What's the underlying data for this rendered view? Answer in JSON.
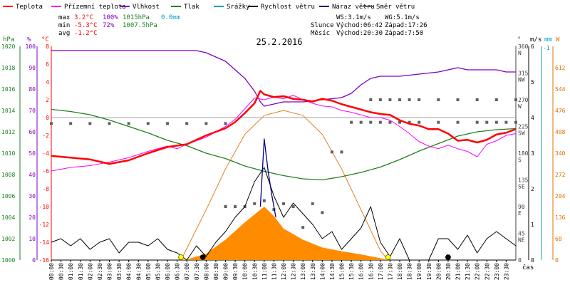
{
  "chart_data": {
    "type": "line",
    "title": "25.2.2016",
    "legend": [
      {
        "label": "Teplota",
        "color": "#ff0000"
      },
      {
        "label": "Přízemní teplota",
        "color": "#ff00ff"
      },
      {
        "label": "Vlhkost",
        "color": "#8000c0"
      },
      {
        "label": "Tlak",
        "color": "#208020"
      },
      {
        "label": "Srážky",
        "color": "#00a0c0"
      },
      {
        "label": "Rychlost větru",
        "color": "#000000"
      },
      {
        "label": "Náraz větru",
        "color": "#000080"
      },
      {
        "label": "Směr větru",
        "color": "#606060"
      }
    ],
    "stats": {
      "max_label": "max",
      "max_temp": "3.2°C",
      "max_hum": "100%",
      "max_press": "1015hPa",
      "max_rain": "0.0mm",
      "min_label": "min",
      "min_temp": "-5.3°C",
      "min_hum": "72%",
      "min_press": "1007.5hPa",
      "avg_label": "avg",
      "avg_temp": "-1.2°C",
      "ws": "WS:3.1m/s",
      "wg": "WG:5.1m/s",
      "sun_label": "Slunce",
      "sunrise": "Východ:06:42",
      "sunset": "Západ:17:26",
      "moon_label": "Měsíc",
      "moonrise": "Východ:20:30",
      "moonset": "Západ:7:50"
    },
    "axis_units": {
      "hpa": "hPa",
      "pct": "%",
      "temp": "°C",
      "deg": "°",
      "ms": "m/s",
      "mm": "mm",
      "w": "W",
      "time": "čas"
    },
    "temp_axis": {
      "range": [
        -16,
        8
      ],
      "ticks": [
        8,
        6,
        4,
        2,
        0,
        -2,
        -4,
        -6,
        -8,
        -10,
        -12,
        -14,
        -16
      ]
    },
    "hum_axis": {
      "range": [
        0,
        100
      ],
      "ticks": [
        100,
        90,
        80,
        70,
        60,
        50,
        40,
        30,
        20,
        10,
        0
      ]
    },
    "press_axis": {
      "range": [
        1000,
        1020
      ],
      "ticks": [
        1020,
        1018,
        1016,
        1014,
        1012,
        1010,
        1008,
        1006,
        1004,
        1002,
        1000
      ]
    },
    "dir_axis": {
      "range": [
        0,
        360
      ],
      "ticks": [
        {
          "v": 360,
          "d": "N"
        },
        {
          "v": 315,
          "d": "NW"
        },
        {
          "v": 270,
          "d": "W"
        },
        {
          "v": 225,
          "d": "SW"
        },
        {
          "v": 180,
          "d": "S"
        },
        {
          "v": 135,
          "d": "SE"
        },
        {
          "v": 90,
          "d": "E"
        },
        {
          "v": 45,
          "d": "NE"
        },
        {
          "v": 0,
          "d": ""
        }
      ]
    },
    "wind_axis": {
      "range": [
        0,
        6
      ],
      "ticks": [
        6,
        5,
        4,
        3,
        2,
        1,
        0
      ]
    },
    "rain_axis_top": "-1",
    "solar_axis": {
      "range": [
        0,
        680
      ],
      "ticks": [
        612,
        544,
        476,
        408,
        340,
        272,
        204,
        136,
        68,
        0
      ]
    },
    "time_ticks": [
      "00:00",
      "00:30",
      "01:00",
      "01:30",
      "02:00",
      "02:30",
      "03:00",
      "03:30",
      "04:00",
      "04:30",
      "05:00",
      "05:30",
      "06:00",
      "06:30",
      "07:00",
      "07:30",
      "08:00",
      "08:30",
      "09:00",
      "09:30",
      "10:00",
      "10:30",
      "11:00",
      "11:30",
      "12:00",
      "12:30",
      "13:00",
      "13:30",
      "14:00",
      "14:30",
      "15:00",
      "15:30",
      "16:00",
      "16:30",
      "17:00",
      "17:30",
      "18:00",
      "18:30",
      "19:00",
      "19:30",
      "20:00",
      "20:30",
      "21:00",
      "21:30",
      "22:00",
      "22:30",
      "23:00",
      "23:30"
    ],
    "x_hours_range": [
      0,
      24
    ],
    "series": {
      "temperature": {
        "x": [
          0,
          1,
          2,
          3,
          4,
          5,
          6,
          7,
          8,
          9,
          9.5,
          10,
          10.5,
          10.8,
          11,
          11.5,
          12,
          12.5,
          13,
          13.5,
          14,
          14.5,
          15,
          15.5,
          16,
          16.5,
          17,
          17.5,
          18,
          18.5,
          19,
          19.5,
          20,
          20.5,
          21,
          21.5,
          22,
          22.5,
          23,
          23.5,
          24
        ],
        "y": [
          -4.3,
          -4.5,
          -4.7,
          -5.2,
          -4.8,
          -4.0,
          -3.3,
          -3.0,
          -2.0,
          -1.2,
          -0.5,
          0.5,
          1.6,
          3.0,
          2.6,
          2.3,
          2.4,
          2.1,
          2.0,
          1.8,
          2.1,
          1.9,
          1.5,
          1.2,
          0.9,
          0.6,
          0.4,
          0.3,
          -0.3,
          -0.7,
          -0.9,
          -1.3,
          -1.3,
          -1.8,
          -2.6,
          -2.5,
          -2.8,
          -2.5,
          -1.9,
          -1.7,
          -1.3
        ]
      },
      "ground_temp": {
        "x": [
          0,
          1,
          2,
          3,
          4,
          5,
          6,
          6.5,
          7,
          8,
          9,
          9.5,
          10,
          10.5,
          11,
          11.5,
          12,
          12.5,
          13,
          13.5,
          14,
          14.5,
          15,
          15.5,
          16,
          16.5,
          17,
          17.5,
          18,
          18.5,
          19,
          19.5,
          20,
          20.5,
          21,
          21.5,
          22,
          22.5,
          23,
          23.5,
          24
        ],
        "y": [
          -6,
          -5.6,
          -5.4,
          -5,
          -4.5,
          -3.8,
          -3.2,
          -3.5,
          -3,
          -2.2,
          -1,
          -0.2,
          1,
          2.2,
          2,
          2.3,
          2.1,
          2.5,
          2,
          1.6,
          1.3,
          1.2,
          0.8,
          0.6,
          0.3,
          0,
          0,
          -0.3,
          -1,
          -1.8,
          -2.7,
          -3.2,
          -3.5,
          -3.1,
          -3.5,
          -3.8,
          -4.4,
          -3,
          -2.6,
          -2,
          -1.8
        ]
      },
      "humidity": {
        "x": [
          0,
          2,
          4,
          6,
          7.5,
          8,
          8.5,
          9,
          9.5,
          10,
          10.5,
          10.8,
          11,
          11.5,
          12,
          13,
          14,
          15,
          15.5,
          16,
          16.5,
          17,
          18,
          19,
          20,
          21,
          21.5,
          22,
          22.5,
          23,
          23.5,
          24
        ],
        "y": [
          98,
          98,
          98,
          98,
          98,
          97,
          95,
          93,
          89,
          85,
          79,
          74,
          72,
          73,
          74,
          74,
          75,
          76,
          78,
          82,
          85,
          86,
          86,
          87,
          88,
          90,
          89,
          89,
          89,
          89,
          88,
          88
        ]
      },
      "pressure": {
        "x": [
          0,
          1,
          2,
          3,
          4,
          5,
          6,
          7,
          8,
          9,
          10,
          11,
          12,
          13,
          14,
          15,
          16,
          17,
          18,
          19,
          20,
          21,
          22,
          23,
          24
        ],
        "y": [
          1014.1,
          1013.9,
          1013.6,
          1013.1,
          1012.5,
          1011.9,
          1011.2,
          1010.7,
          1010.0,
          1009.5,
          1008.8,
          1008.3,
          1007.9,
          1007.6,
          1007.5,
          1007.8,
          1008.2,
          1008.7,
          1009.4,
          1010.2,
          1010.9,
          1011.6,
          1012.0,
          1012.2,
          1012.3
        ]
      },
      "wind_speed": {
        "x": [
          0,
          0.5,
          1,
          1.5,
          2,
          2.5,
          3,
          3.5,
          4,
          4.5,
          5,
          5.5,
          6,
          6.5,
          7,
          7.5,
          8,
          8.5,
          9,
          9.5,
          10,
          10.5,
          11,
          11.5,
          12,
          12.5,
          13,
          13.5,
          14,
          14.5,
          15,
          15.5,
          16,
          16.5,
          17,
          17.5,
          18,
          18.5,
          19,
          19.5,
          20,
          20.5,
          21,
          21.5,
          22,
          22.5,
          23,
          23.5,
          24
        ],
        "y": [
          0.5,
          0.6,
          0.4,
          0.6,
          0.3,
          0.5,
          0.6,
          0.2,
          0.5,
          0.5,
          0.4,
          0.6,
          0.3,
          0.2,
          0,
          0.4,
          0.1,
          0.5,
          0.8,
          1.2,
          1.5,
          2.2,
          2.6,
          1.8,
          1.2,
          1.6,
          1.3,
          1.0,
          0.6,
          0.8,
          0.3,
          0.6,
          0.9,
          1.5,
          0.5,
          0.1,
          0.6,
          0,
          0,
          0,
          0.6,
          0.6,
          0.3,
          0.7,
          0.2,
          0.6,
          0.8,
          0.6,
          0.4
        ]
      },
      "wind_gust": {
        "x": [
          10.8,
          11,
          11.2,
          11.4,
          11.6
        ],
        "y": [
          1.5,
          3.4,
          2.5,
          1.8,
          1.2
        ]
      },
      "solar": {
        "x": [
          6.7,
          7,
          8,
          9,
          10,
          11,
          11.5,
          12,
          13,
          14,
          15,
          16,
          17,
          17.4
        ],
        "y": [
          0,
          2,
          20,
          65,
          120,
          170,
          140,
          100,
          65,
          40,
          28,
          18,
          6,
          0
        ]
      },
      "sun_curve": {
        "x": [
          6.7,
          8,
          9,
          10,
          11,
          12,
          13,
          14,
          15,
          16,
          17,
          17.4
        ],
        "y": [
          0,
          160,
          290,
          400,
          460,
          476,
          460,
          400,
          290,
          160,
          30,
          0
        ]
      },
      "wind_dir_low": {
        "x": [
          0,
          1,
          2,
          3,
          4,
          5,
          6,
          7,
          8,
          9,
          15.5,
          16,
          16.5,
          17,
          17.5,
          18,
          18.5,
          19,
          20,
          21,
          22,
          22.5,
          23,
          23.5,
          24
        ],
        "y": [
          230,
          230,
          230,
          230,
          230,
          230,
          230,
          230,
          230,
          230,
          232,
          232,
          232,
          232,
          232,
          232,
          232,
          232,
          232,
          232,
          232,
          232,
          232,
          232,
          232
        ]
      },
      "wind_dir_mid": {
        "x": [
          14.5,
          15
        ],
        "y": [
          182,
          182
        ]
      },
      "wind_dir_high": {
        "x": [
          16.5,
          17,
          17.5,
          18,
          18.5,
          19,
          20,
          21,
          22,
          23,
          24
        ],
        "y": [
          270,
          270,
          270,
          270,
          270,
          270,
          270,
          270,
          270,
          270,
          270
        ]
      },
      "wind_dir_noon": {
        "x": [
          9,
          9.5,
          10,
          10.5,
          11,
          11.5,
          12,
          12.5,
          13,
          13.5,
          14
        ],
        "y": [
          90,
          90,
          90,
          95,
          100,
          85,
          95,
          90,
          55,
          95,
          80
        ]
      }
    }
  }
}
